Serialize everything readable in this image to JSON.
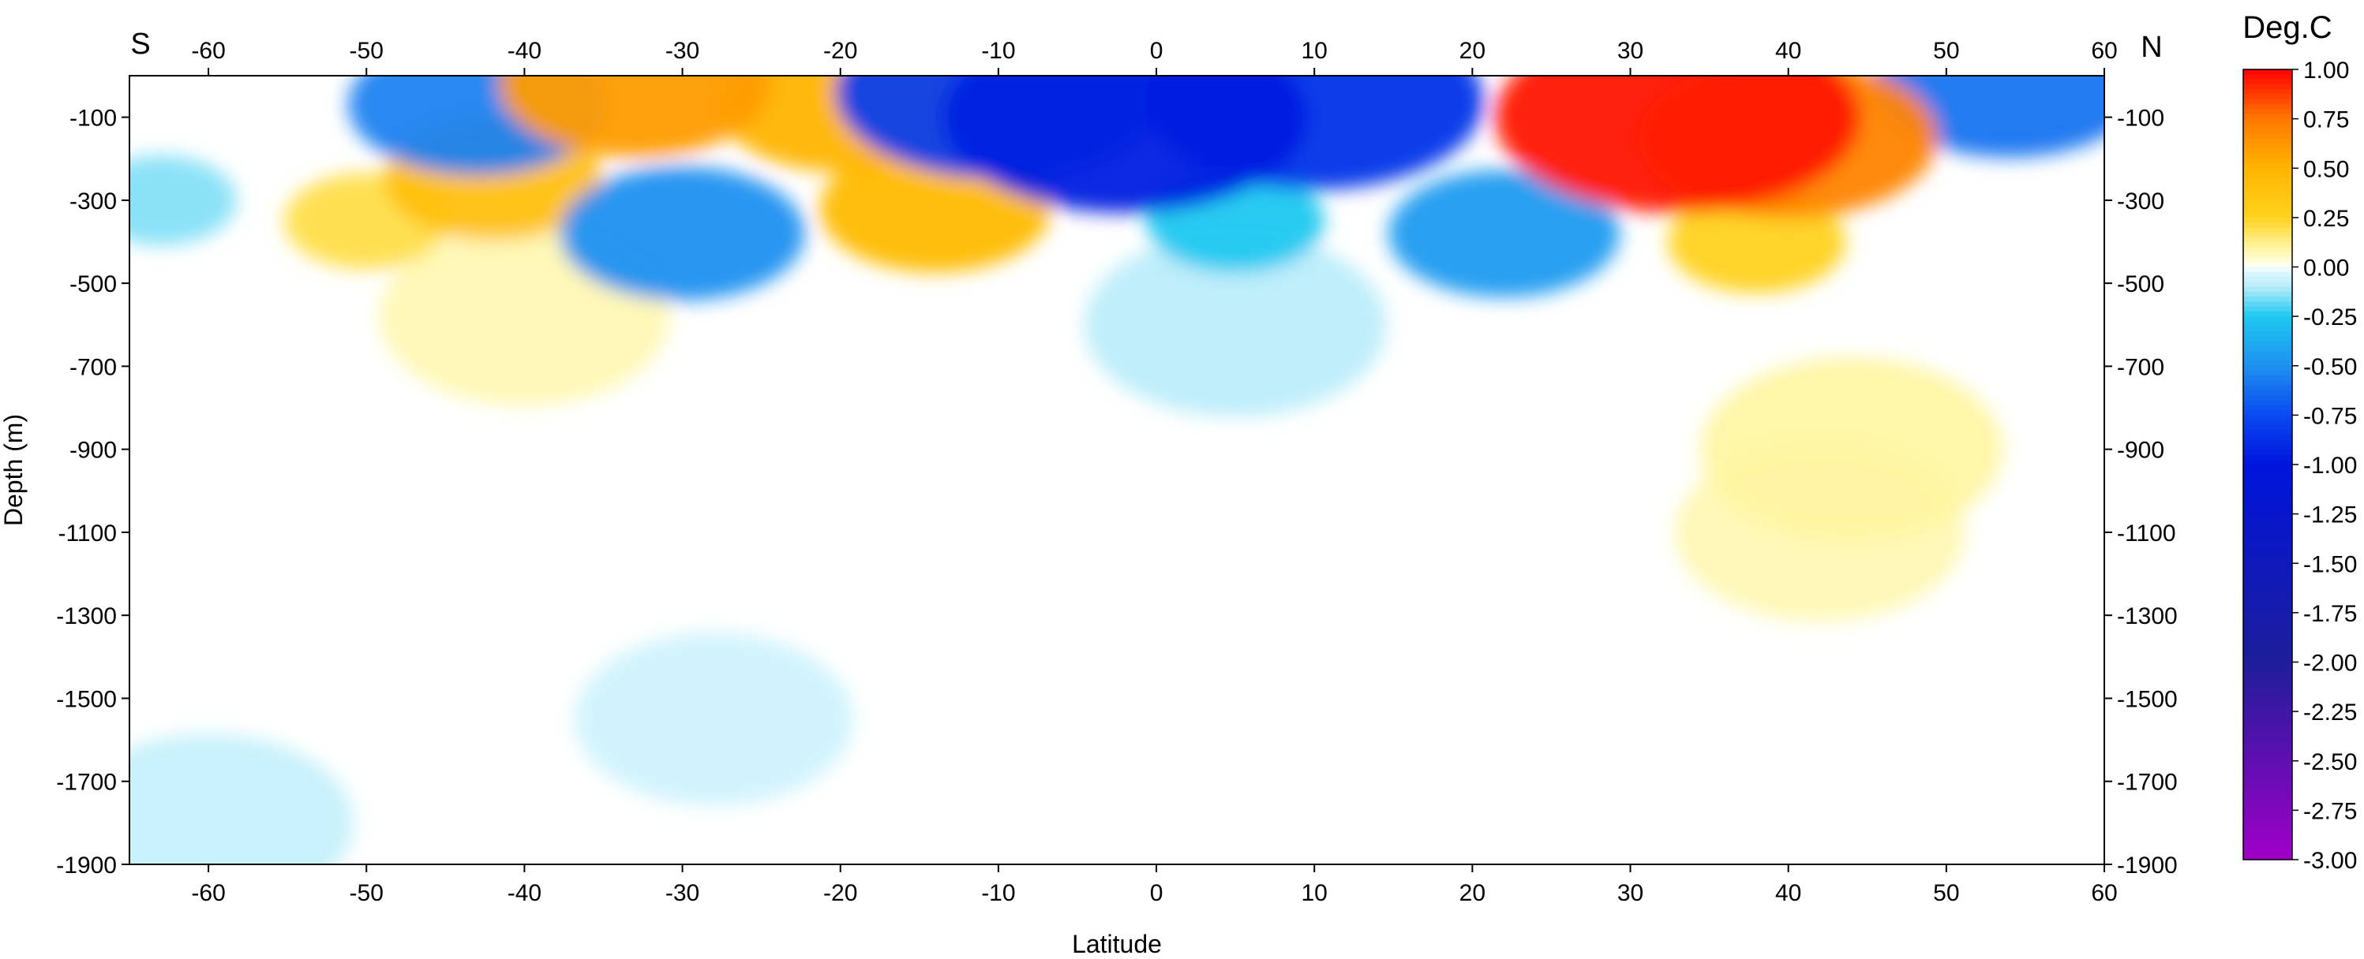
{
  "chart_data": {
    "type": "heatmap",
    "title": "",
    "xlabel": "Latitude",
    "ylabel": "Depth (m)",
    "colorbar_title": "Deg.C",
    "hemisphere_labels": {
      "south": "S",
      "north": "N"
    },
    "xlim": [
      -65,
      60
    ],
    "ylim": [
      -1900,
      0
    ],
    "x_ticks": [
      -60,
      -50,
      -40,
      -30,
      -20,
      -10,
      0,
      10,
      20,
      30,
      40,
      50,
      60
    ],
    "y_ticks": [
      -100,
      -300,
      -500,
      -700,
      -900,
      -1100,
      -1300,
      -1500,
      -1700,
      -1900
    ],
    "colorbar_range": [
      -3.0,
      1.0
    ],
    "colorbar_labels": [
      "1.00",
      "0.75",
      "0.50",
      "0.25",
      "0.00",
      "-0.25",
      "-0.50",
      "-0.75",
      "-1.00",
      "-1.25",
      "-1.50",
      "-1.75",
      "-2.00",
      "-2.25",
      "-2.50",
      "-2.75",
      "-3.00"
    ],
    "colors": {
      "max_warm": "#ff0000",
      "warm": "#ffd21e",
      "neutral": "#ffffff",
      "cool": "#1ec8f0",
      "cold": "#0014dc",
      "min_cold": "#a000c8"
    },
    "anomaly_features": [
      {
        "lat": 33,
        "depth": -100,
        "value": 0.95
      },
      {
        "lat": 40,
        "depth": -150,
        "value": 0.7
      },
      {
        "lat": 38,
        "depth": -400,
        "value": 0.25
      },
      {
        "lat": 44,
        "depth": -900,
        "value": 0.1
      },
      {
        "lat": 42,
        "depth": -1100,
        "value": 0.08
      },
      {
        "lat": -33,
        "depth": -20,
        "value": 0.6
      },
      {
        "lat": -20,
        "depth": -70,
        "value": 0.5
      },
      {
        "lat": -42,
        "depth": -250,
        "value": 0.4
      },
      {
        "lat": -14,
        "depth": -320,
        "value": 0.45
      },
      {
        "lat": -50,
        "depth": -350,
        "value": 0.2
      },
      {
        "lat": -40,
        "depth": -580,
        "value": 0.08
      },
      {
        "lat": -2,
        "depth": -100,
        "value": -0.95
      },
      {
        "lat": 10,
        "depth": -60,
        "value": -0.85
      },
      {
        "lat": -10,
        "depth": -40,
        "value": -0.8
      },
      {
        "lat": 54,
        "depth": -20,
        "value": -0.6
      },
      {
        "lat": -43,
        "depth": -70,
        "value": -0.55
      },
      {
        "lat": -30,
        "depth": -380,
        "value": -0.5
      },
      {
        "lat": 22,
        "depth": -380,
        "value": -0.45
      },
      {
        "lat": 5,
        "depth": -350,
        "value": -0.25
      },
      {
        "lat": 5,
        "depth": -600,
        "value": -0.1
      },
      {
        "lat": -63,
        "depth": -300,
        "value": -0.15
      },
      {
        "lat": -60,
        "depth": -1800,
        "value": -0.08
      },
      {
        "lat": -28,
        "depth": -1550,
        "value": -0.06
      }
    ]
  }
}
